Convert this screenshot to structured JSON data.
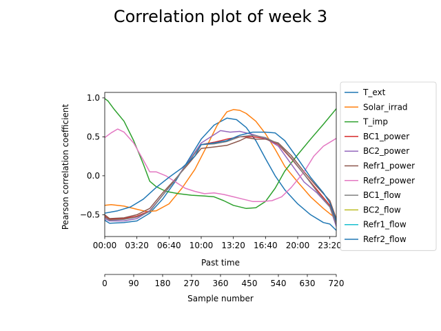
{
  "chart_data": {
    "type": "line",
    "title": "Correlation plot of week 3",
    "ylabel": "Pearson correlation coefficient",
    "xlabel": "Past time",
    "secondary_xlabel": "Sample number",
    "xlim": [
      0,
      720
    ],
    "ylim": [
      -0.78,
      1.07
    ],
    "grid": false,
    "legend_position": "outside-right",
    "yticks": [
      -0.5,
      0.0,
      0.5,
      1.0
    ],
    "ytick_labels": [
      "−0.5",
      "0.0",
      "0.5",
      "1.0"
    ],
    "xticks_time": [
      {
        "x": 0,
        "label": "00:00"
      },
      {
        "x": 100,
        "label": "03:20"
      },
      {
        "x": 200,
        "label": "06:40"
      },
      {
        "x": 300,
        "label": "10:00"
      },
      {
        "x": 400,
        "label": "13:20"
      },
      {
        "x": 500,
        "label": "16:40"
      },
      {
        "x": 600,
        "label": "20:00"
      },
      {
        "x": 700,
        "label": "23:20"
      }
    ],
    "xticks_samples": [
      {
        "x": 0,
        "label": "0"
      },
      {
        "x": 90,
        "label": "90"
      },
      {
        "x": 180,
        "label": "180"
      },
      {
        "x": 270,
        "label": "270"
      },
      {
        "x": 360,
        "label": "360"
      },
      {
        "x": 450,
        "label": "450"
      },
      {
        "x": 540,
        "label": "540"
      },
      {
        "x": 630,
        "label": "630"
      },
      {
        "x": 720,
        "label": "720"
      }
    ],
    "series": [
      {
        "name": "T_ext",
        "color": "#1f77b4",
        "points": [
          [
            0,
            -0.57
          ],
          [
            15,
            -0.61
          ],
          [
            60,
            -0.6
          ],
          [
            100,
            -0.58
          ],
          [
            140,
            -0.48
          ],
          [
            180,
            -0.3
          ],
          [
            220,
            -0.07
          ],
          [
            260,
            0.2
          ],
          [
            300,
            0.47
          ],
          [
            340,
            0.65
          ],
          [
            380,
            0.74
          ],
          [
            410,
            0.72
          ],
          [
            440,
            0.62
          ],
          [
            470,
            0.45
          ],
          [
            500,
            0.22
          ],
          [
            530,
            0.0
          ],
          [
            560,
            -0.18
          ],
          [
            600,
            -0.36
          ],
          [
            640,
            -0.5
          ],
          [
            680,
            -0.6
          ],
          [
            700,
            -0.62
          ],
          [
            720,
            -0.7
          ]
        ]
      },
      {
        "name": "Solar_irrad",
        "color": "#ff7f0e",
        "points": [
          [
            0,
            -0.38
          ],
          [
            20,
            -0.37
          ],
          [
            60,
            -0.39
          ],
          [
            100,
            -0.43
          ],
          [
            130,
            -0.46
          ],
          [
            160,
            -0.45
          ],
          [
            200,
            -0.36
          ],
          [
            240,
            -0.16
          ],
          [
            280,
            0.08
          ],
          [
            320,
            0.4
          ],
          [
            350,
            0.65
          ],
          [
            380,
            0.82
          ],
          [
            400,
            0.85
          ],
          [
            420,
            0.84
          ],
          [
            440,
            0.8
          ],
          [
            470,
            0.7
          ],
          [
            500,
            0.54
          ],
          [
            530,
            0.34
          ],
          [
            560,
            0.12
          ],
          [
            600,
            -0.08
          ],
          [
            640,
            -0.27
          ],
          [
            680,
            -0.42
          ],
          [
            710,
            -0.52
          ],
          [
            720,
            -0.6
          ]
        ]
      },
      {
        "name": "T_imp",
        "color": "#2ca02c",
        "points": [
          [
            0,
            0.99
          ],
          [
            10,
            0.96
          ],
          [
            30,
            0.85
          ],
          [
            60,
            0.7
          ],
          [
            90,
            0.45
          ],
          [
            120,
            0.15
          ],
          [
            140,
            -0.07
          ],
          [
            160,
            -0.14
          ],
          [
            190,
            -0.2
          ],
          [
            230,
            -0.23
          ],
          [
            270,
            -0.25
          ],
          [
            310,
            -0.26
          ],
          [
            340,
            -0.27
          ],
          [
            370,
            -0.32
          ],
          [
            400,
            -0.38
          ],
          [
            440,
            -0.42
          ],
          [
            470,
            -0.41
          ],
          [
            500,
            -0.33
          ],
          [
            530,
            -0.16
          ],
          [
            560,
            0.06
          ],
          [
            600,
            0.27
          ],
          [
            640,
            0.47
          ],
          [
            680,
            0.66
          ],
          [
            720,
            0.86
          ]
        ]
      },
      {
        "name": "BC1_power",
        "color": "#d62728",
        "points": [
          [
            0,
            -0.52
          ],
          [
            15,
            -0.56
          ],
          [
            60,
            -0.55
          ],
          [
            100,
            -0.52
          ],
          [
            140,
            -0.45
          ],
          [
            180,
            -0.25
          ],
          [
            220,
            -0.05
          ],
          [
            260,
            0.18
          ],
          [
            300,
            0.4
          ],
          [
            340,
            0.43
          ],
          [
            380,
            0.47
          ],
          [
            420,
            0.5
          ],
          [
            460,
            0.5
          ],
          [
            500,
            0.48
          ],
          [
            540,
            0.4
          ],
          [
            580,
            0.22
          ],
          [
            620,
            0.02
          ],
          [
            660,
            -0.18
          ],
          [
            700,
            -0.38
          ],
          [
            720,
            -0.6
          ]
        ]
      },
      {
        "name": "BC2_power",
        "color": "#9467bd",
        "points": [
          [
            0,
            -0.55
          ],
          [
            15,
            -0.58
          ],
          [
            60,
            -0.58
          ],
          [
            100,
            -0.55
          ],
          [
            140,
            -0.45
          ],
          [
            180,
            -0.25
          ],
          [
            220,
            -0.05
          ],
          [
            260,
            0.18
          ],
          [
            300,
            0.42
          ],
          [
            330,
            0.5
          ],
          [
            360,
            0.58
          ],
          [
            390,
            0.56
          ],
          [
            420,
            0.57
          ],
          [
            460,
            0.53
          ],
          [
            500,
            0.48
          ],
          [
            540,
            0.38
          ],
          [
            580,
            0.15
          ],
          [
            620,
            -0.08
          ],
          [
            660,
            -0.22
          ],
          [
            700,
            -0.4
          ],
          [
            720,
            -0.65
          ]
        ]
      },
      {
        "name": "Refr1_power",
        "color": "#8c564b",
        "points": [
          [
            0,
            -0.5
          ],
          [
            15,
            -0.55
          ],
          [
            60,
            -0.54
          ],
          [
            100,
            -0.5
          ],
          [
            140,
            -0.42
          ],
          [
            180,
            -0.22
          ],
          [
            220,
            -0.04
          ],
          [
            260,
            0.15
          ],
          [
            300,
            0.35
          ],
          [
            340,
            0.37
          ],
          [
            380,
            0.39
          ],
          [
            420,
            0.45
          ],
          [
            440,
            0.49
          ],
          [
            470,
            0.47
          ],
          [
            500,
            0.47
          ],
          [
            540,
            0.42
          ],
          [
            580,
            0.26
          ],
          [
            620,
            0.05
          ],
          [
            660,
            -0.14
          ],
          [
            700,
            -0.32
          ],
          [
            720,
            -0.55
          ]
        ]
      },
      {
        "name": "Refr2_power",
        "color": "#e377c2",
        "points": [
          [
            0,
            0.49
          ],
          [
            20,
            0.55
          ],
          [
            40,
            0.6
          ],
          [
            60,
            0.56
          ],
          [
            90,
            0.42
          ],
          [
            120,
            0.2
          ],
          [
            140,
            0.05
          ],
          [
            160,
            0.05
          ],
          [
            190,
            0.0
          ],
          [
            220,
            -0.08
          ],
          [
            250,
            -0.16
          ],
          [
            280,
            -0.2
          ],
          [
            310,
            -0.23
          ],
          [
            340,
            -0.22
          ],
          [
            370,
            -0.24
          ],
          [
            400,
            -0.27
          ],
          [
            430,
            -0.3
          ],
          [
            460,
            -0.33
          ],
          [
            490,
            -0.33
          ],
          [
            520,
            -0.32
          ],
          [
            550,
            -0.27
          ],
          [
            580,
            -0.15
          ],
          [
            620,
            0.05
          ],
          [
            650,
            0.25
          ],
          [
            680,
            0.38
          ],
          [
            720,
            0.48
          ]
        ]
      },
      {
        "name": "BC1_flow",
        "color": "#7f7f7f",
        "points": [
          [
            0,
            -0.53
          ],
          [
            15,
            -0.57
          ],
          [
            60,
            -0.56
          ],
          [
            100,
            -0.53
          ],
          [
            140,
            -0.46
          ],
          [
            180,
            -0.25
          ],
          [
            220,
            -0.05
          ],
          [
            260,
            0.17
          ],
          [
            300,
            0.4
          ],
          [
            340,
            0.41
          ],
          [
            380,
            0.44
          ],
          [
            420,
            0.5
          ],
          [
            460,
            0.52
          ],
          [
            500,
            0.49
          ],
          [
            540,
            0.41
          ],
          [
            580,
            0.23
          ],
          [
            620,
            0.02
          ],
          [
            660,
            -0.2
          ],
          [
            700,
            -0.4
          ],
          [
            720,
            -0.62
          ]
        ]
      },
      {
        "name": "BC2_flow",
        "color": "#bcbd22",
        "points": []
      },
      {
        "name": "Refr1_flow",
        "color": "#17becf",
        "points": []
      },
      {
        "name": "Refr2_flow",
        "color": "#1f77b4",
        "points": [
          [
            0,
            -0.48
          ],
          [
            40,
            -0.45
          ],
          [
            80,
            -0.4
          ],
          [
            120,
            -0.3
          ],
          [
            160,
            -0.15
          ],
          [
            200,
            -0.02
          ],
          [
            240,
            0.1
          ],
          [
            280,
            0.25
          ],
          [
            300,
            0.4
          ],
          [
            340,
            0.42
          ],
          [
            380,
            0.45
          ],
          [
            420,
            0.52
          ],
          [
            460,
            0.56
          ],
          [
            500,
            0.56
          ],
          [
            530,
            0.55
          ],
          [
            560,
            0.45
          ],
          [
            600,
            0.22
          ],
          [
            640,
            -0.02
          ],
          [
            680,
            -0.22
          ],
          [
            700,
            -0.35
          ],
          [
            720,
            -0.58
          ]
        ]
      }
    ]
  }
}
